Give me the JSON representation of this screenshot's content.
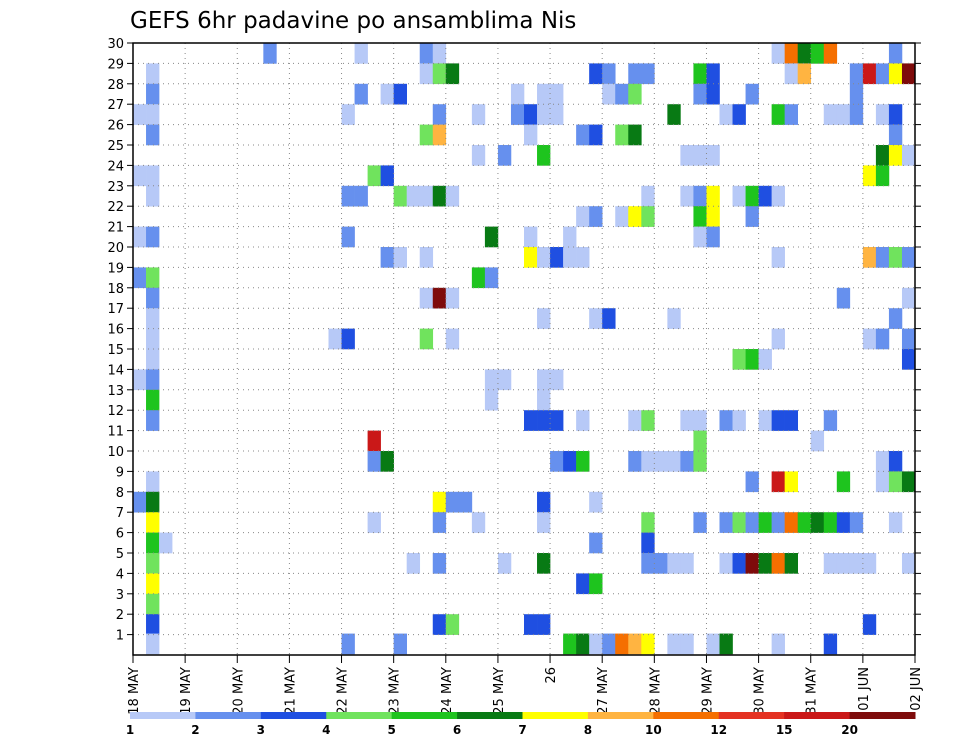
{
  "chart_data": {
    "type": "heatmap",
    "title": "GEFS 6hr padavine po ansamblima Nis",
    "xlabel": "",
    "ylabel": "",
    "x_tick_labels": [
      "18 MAY",
      "19 MAY",
      "20 MAY",
      "21 MAY",
      "22 MAY",
      "23 MAY",
      "24 MAY",
      "25 MAY",
      "26",
      "27 MAY",
      "28 MAY",
      "29 MAY",
      "30 MAY",
      "31 MAY",
      "01 JUN",
      "02 JUN"
    ],
    "x_range": [
      "18 MAY 00Z",
      "02 JUN 00Z"
    ],
    "x_step_hours": 6,
    "y_tick_labels": [
      "1",
      "2",
      "3",
      "4",
      "5",
      "6",
      "7",
      "8",
      "9",
      "10",
      "11",
      "12",
      "13",
      "14",
      "15",
      "16",
      "17",
      "18",
      "19",
      "20",
      "21",
      "22",
      "23",
      "24",
      "25",
      "26",
      "27",
      "28",
      "29",
      "30"
    ],
    "y_range": [
      0,
      30
    ],
    "grid": true,
    "levels": [
      "1",
      "2",
      "3",
      "4",
      "5",
      "6",
      "7",
      "8",
      "10",
      "12",
      "15",
      "20"
    ],
    "colors": [
      "#b7c9f7",
      "#6690ee",
      "#1f4fe1",
      "#70e35d",
      "#1ec41e",
      "#087a14",
      "#ffff00",
      "#ffb441",
      "#f56f00",
      "#e43222",
      "#ca1818",
      "#7e0b0b"
    ],
    "cells": [
      {
        "member": 30,
        "x": [
          "2024-05-19 06:00Z"
        ],
        "class": 1
      },
      {
        "member": 29,
        "x": [
          "2024-05-18 06:00Z",
          "2024-05-24 00:00Z"
        ],
        "class": [
          1,
          4
        ]
      },
      {
        "member": 29,
        "x": [
          "2024-05-24 00:00Z"
        ],
        "class": 6
      },
      {
        "member": 29,
        "x": [
          "2024-05-27 00:00Z"
        ],
        "class": 3
      },
      {
        "member": 29,
        "x": [
          "2024-05-29 00:00Z"
        ],
        "class": 5
      },
      {
        "member": 29,
        "x": [
          "2024-06-01 00:00Z"
        ],
        "class": 11
      },
      {
        "member": 29,
        "x": [
          "2024-06-02 00:00Z"
        ],
        "class": 12
      },
      {
        "member": 26,
        "x": [
          "2024-05-24 00:00Z"
        ],
        "class": 8
      },
      {
        "member": 25,
        "x": [
          "2024-06-01 12:00Z"
        ],
        "class": 6
      },
      {
        "member": 24,
        "x": [
          "2024-06-01 00:00Z"
        ],
        "class": 7
      },
      {
        "member": 23,
        "x": [
          "2024-05-29 00:00Z"
        ],
        "class": 7
      },
      {
        "member": 22,
        "x": [
          "2024-05-28 00:00Z"
        ],
        "class": 7
      },
      {
        "member": 20,
        "x": [
          "2024-05-26 00:00Z"
        ],
        "class": 7
      },
      {
        "member": 20,
        "x": [
          "2024-06-01 00:00Z"
        ],
        "class": 8
      },
      {
        "member": 18,
        "x": [
          "2024-05-24 00:00Z"
        ],
        "class": 12
      },
      {
        "member": 10,
        "x": [
          "2024-05-23 00:00Z"
        ],
        "class": 11
      },
      {
        "member": 8,
        "x": [
          "2024-05-30 00:00Z"
        ],
        "class": 12
      },
      {
        "member": 8,
        "x": [
          "2024-05-30 06:00Z"
        ],
        "class": 7
      },
      {
        "member": 7,
        "x": [
          "2024-05-24 00:00Z"
        ],
        "class": 7
      },
      {
        "member": 6,
        "x": [
          "2024-05-18 06:00Z"
        ],
        "class": 7
      },
      {
        "member": 6,
        "x": [
          "2024-05-30 12:00Z"
        ],
        "class": 8
      },
      {
        "member": 4,
        "x": [
          "2024-05-30 00:00Z"
        ],
        "class": 12
      },
      {
        "member": 4,
        "x": [
          "2024-05-30 12:00Z"
        ],
        "class": 9
      },
      {
        "member": 3,
        "x": [
          "2024-05-18 06:00Z"
        ],
        "class": 7
      }
    ]
  }
}
